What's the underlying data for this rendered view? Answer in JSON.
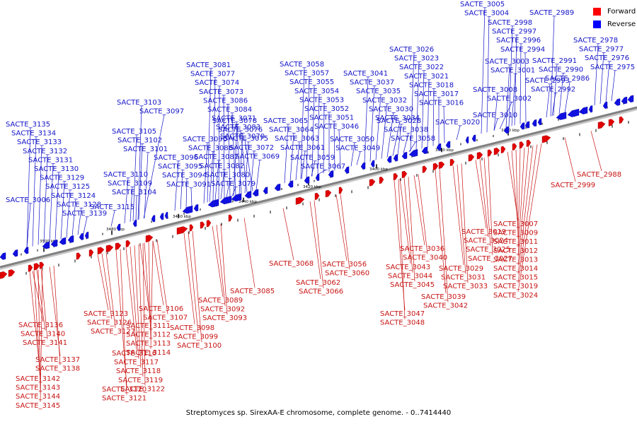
{
  "caption": "Streptomyces sp. SirexAA-E chromosome, complete genome. - 0..7414440",
  "legend": [
    {
      "label": "Forward",
      "color": "#ff0000"
    },
    {
      "label": "Reverse",
      "color": "#0000ff"
    }
  ],
  "colors": {
    "forward": "#e00000",
    "reverse": "#1010e0",
    "axis": "#808080",
    "tick": "#000000"
  },
  "scale_labels": [
    "3360 kbp",
    "3380 kbp",
    "3400 kbp",
    "3420 kbp",
    "3440 kbp",
    "3460 kbp",
    "3480 kbp",
    "3500 kbp"
  ],
  "reverse_labels_top": [
    "SACTE_3005",
    "SACTE_3004",
    "SACTE_2989",
    "SACTE_2998",
    "SACTE_2997",
    "SACTE_2996",
    "SACTE_2994",
    "SACTE_2978",
    "SACTE_2977",
    "SACTE_2976",
    "SACTE_2975",
    "SACTE_2991",
    "SACTE_2990",
    "SACTE_2986",
    "SACTE_2993",
    "SACTE_2992",
    "SACTE_3003",
    "SACTE_3001",
    "SACTE_3008",
    "SACTE_3002",
    "SACTE_3010",
    "SACTE_3026",
    "SACTE_3023",
    "SACTE_3022",
    "SACTE_3021",
    "SACTE_3018",
    "SACTE_3017",
    "SACTE_3016",
    "SACTE_3020",
    "SACTE_3041",
    "SACTE_3037",
    "SACTE_3035",
    "SACTE_3032",
    "SACTE_3030",
    "SACTE_3034",
    "SACTE_3028",
    "SACTE_3038",
    "SACTE_3058",
    "SACTE_3057",
    "SACTE_3055",
    "SACTE_3054",
    "SACTE_3053",
    "SACTE_3052",
    "SACTE_3051",
    "SACTE_3046",
    "SACTE_3065",
    "SACTE_3064",
    "SACTE_3063",
    "SACTE_3061",
    "SACTE_3050",
    "SACTE_3049",
    "SACTE_3059",
    "SACTE_3067",
    "SACTE_3081",
    "SACTE_3077",
    "SACTE_3074",
    "SACTE_3073",
    "SACTE_3086",
    "SACTE_3084",
    "SACTE_3071",
    "SACTE_3083",
    "SACTE_3070",
    "SACTE_3078",
    "SACTE_3076",
    "SACTE_3075",
    "SACTE_3072",
    "SACTE_3069",
    "SACTE_3090",
    "SACTE_3088",
    "SACTE_3087",
    "SACTE_3082",
    "SACTE_3080",
    "SACTE_3079",
    "SACTE_3103",
    "SACTE_3097",
    "SACTE_3105",
    "SACTE_3102",
    "SACTE_3101",
    "SACTE_3096",
    "SACTE_3095",
    "SACTE_3094",
    "SACTE_3091",
    "SACTE_3110",
    "SACTE_3109",
    "SACTE_3104",
    "SACTE_3115",
    "SACTE_3135",
    "SACTE_3134",
    "SACTE_3133",
    "SACTE_3132",
    "SACTE_3131",
    "SACTE_3130",
    "SACTE_3129",
    "SACTE_3125",
    "SACTE_3124",
    "SACTE_3128",
    "SACTE_3139",
    "SACTE_3006"
  ],
  "forward_labels_bottom": [
    "SACTE_2988",
    "SACTE_2999",
    "SACTE_3007",
    "SACTE_3009",
    "SACTE_3011",
    "SACTE_3012",
    "SACTE_3013",
    "SACTE_3014",
    "SACTE_3015",
    "SACTE_3019",
    "SACTE_3024",
    "SACTE_3025",
    "SACTE_3027",
    "SACTE_3029",
    "SACTE_3031",
    "SACTE_3033",
    "SACTE_3036",
    "SACTE_3040",
    "SACTE_3043",
    "SACTE_3044",
    "SACTE_3045",
    "SACTE_3039",
    "SACTE_3042",
    "SACTE_3047",
    "SACTE_3048",
    "SACTE_3056",
    "SACTE_3060",
    "SACTE_3062",
    "SACTE_3066",
    "SACTE_3068",
    "SACTE_3085",
    "SACTE_3089",
    "SACTE_3092",
    "SACTE_3093",
    "SACTE_3098",
    "SACTE_3099",
    "SACTE_3100",
    "SACTE_3106",
    "SACTE_3107",
    "SACTE_3111",
    "SACTE_3112",
    "SACTE_3113",
    "SACTE_3114",
    "SACTE_3116",
    "SACTE_3117",
    "SACTE_3118",
    "SACTE_3119",
    "SACTE_3122",
    "SACTE_3123",
    "SACTE_3126",
    "SACTE_3127",
    "SACTE_3120",
    "SACTE_3121",
    "SACTE_3136",
    "SACTE_3140",
    "SACTE_3141",
    "SACTE_3137",
    "SACTE_3138",
    "SACTE_3142",
    "SACTE_3143",
    "SACTE_3144",
    "SACTE_3145"
  ]
}
